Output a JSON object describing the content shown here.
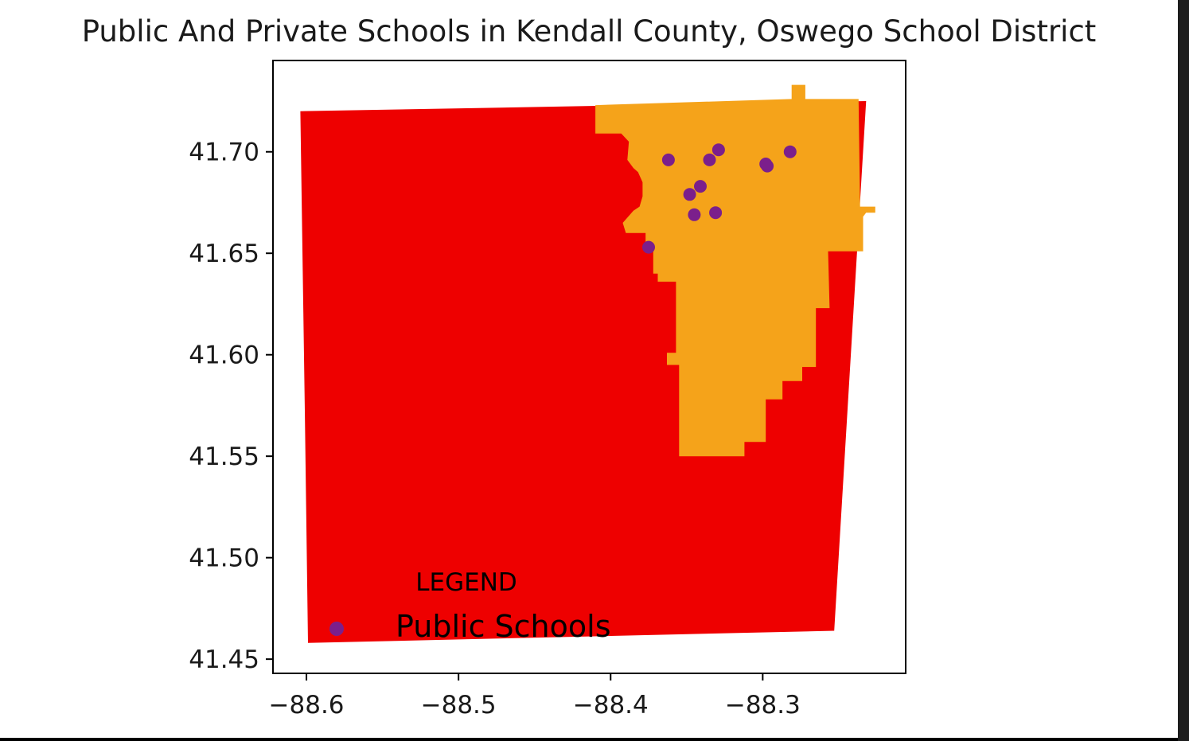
{
  "chart_data": {
    "type": "map",
    "title": "Public And Private Schools in Kendall County, Oswego School District",
    "x_ticks": [
      "−88.6",
      "−88.5",
      "−88.4",
      "−88.3"
    ],
    "x_tick_values": [
      -88.6,
      -88.5,
      -88.4,
      -88.3
    ],
    "y_ticks": [
      "41.70",
      "41.65",
      "41.60",
      "41.55",
      "41.50",
      "41.45"
    ],
    "y_tick_values": [
      41.7,
      41.65,
      41.6,
      41.55,
      41.5,
      41.45
    ],
    "xlim": [
      -88.622,
      -88.206
    ],
    "ylim": [
      41.443,
      41.745
    ],
    "grid": false,
    "legend": {
      "title": "LEGEND",
      "placement": "lower-left",
      "entries": [
        {
          "label": "Public Schools",
          "color": "#7b1f8c"
        }
      ]
    },
    "regions": [
      {
        "name": "Kendall County",
        "color": "#ee0000",
        "polygon": [
          [
            -88.604,
            41.72
          ],
          [
            -88.232,
            41.725
          ],
          [
            -88.253,
            41.464
          ],
          [
            -88.599,
            41.458
          ],
          [
            -88.601,
            41.57
          ]
        ]
      },
      {
        "name": "Oswego School District",
        "color": "#f5a31a",
        "polygon": [
          [
            -88.41,
            41.723
          ],
          [
            -88.281,
            41.726
          ],
          [
            -88.281,
            41.733
          ],
          [
            -88.272,
            41.733
          ],
          [
            -88.272,
            41.726
          ],
          [
            -88.237,
            41.726
          ],
          [
            -88.236,
            41.673
          ],
          [
            -88.226,
            41.673
          ],
          [
            -88.226,
            41.67
          ],
          [
            -88.232,
            41.67
          ],
          [
            -88.234,
            41.668
          ],
          [
            -88.234,
            41.651
          ],
          [
            -88.257,
            41.651
          ],
          [
            -88.256,
            41.623
          ],
          [
            -88.265,
            41.623
          ],
          [
            -88.265,
            41.594
          ],
          [
            -88.274,
            41.594
          ],
          [
            -88.274,
            41.587
          ],
          [
            -88.287,
            41.587
          ],
          [
            -88.287,
            41.578
          ],
          [
            -88.298,
            41.578
          ],
          [
            -88.298,
            41.557
          ],
          [
            -88.312,
            41.557
          ],
          [
            -88.312,
            41.55
          ],
          [
            -88.355,
            41.55
          ],
          [
            -88.355,
            41.595
          ],
          [
            -88.363,
            41.595
          ],
          [
            -88.363,
            41.601
          ],
          [
            -88.357,
            41.601
          ],
          [
            -88.357,
            41.636
          ],
          [
            -88.369,
            41.636
          ],
          [
            -88.369,
            41.64
          ],
          [
            -88.372,
            41.64
          ],
          [
            -88.372,
            41.652
          ],
          [
            -88.377,
            41.652
          ],
          [
            -88.377,
            41.66
          ],
          [
            -88.39,
            41.66
          ],
          [
            -88.392,
            41.665
          ],
          [
            -88.385,
            41.671
          ],
          [
            -88.381,
            41.673
          ],
          [
            -88.379,
            41.678
          ],
          [
            -88.379,
            41.685
          ],
          [
            -88.382,
            41.69
          ],
          [
            -88.385,
            41.692
          ],
          [
            -88.389,
            41.696
          ],
          [
            -88.388,
            41.705
          ],
          [
            -88.393,
            41.709
          ],
          [
            -88.41,
            41.709
          ]
        ]
      }
    ],
    "series": [
      {
        "name": "Public Schools",
        "type": "scatter",
        "color": "#7b1f8c",
        "points": [
          [
            -88.362,
            41.696
          ],
          [
            -88.335,
            41.696
          ],
          [
            -88.329,
            41.701
          ],
          [
            -88.297,
            41.693
          ],
          [
            -88.282,
            41.7
          ],
          [
            -88.341,
            41.683
          ],
          [
            -88.348,
            41.679
          ],
          [
            -88.345,
            41.669
          ],
          [
            -88.331,
            41.67
          ],
          [
            -88.375,
            41.653
          ],
          [
            -88.298,
            41.694
          ]
        ]
      }
    ]
  }
}
